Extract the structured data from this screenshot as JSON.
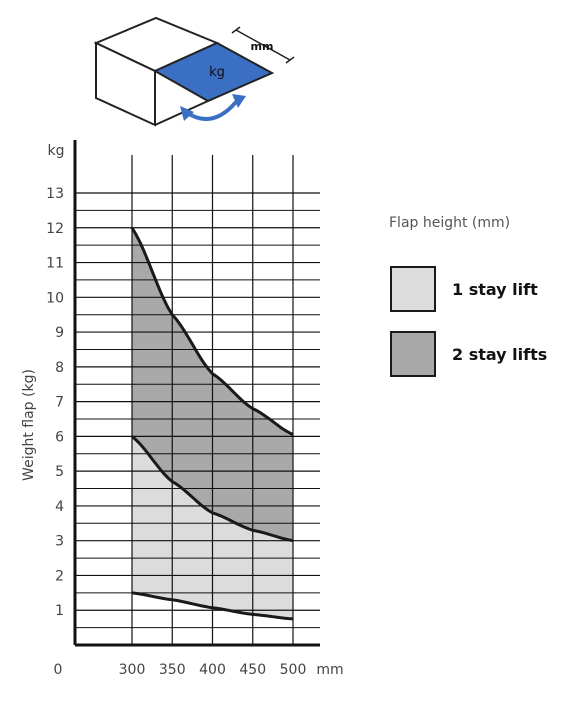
{
  "icon": {
    "name": "flap-box-icon",
    "label_kg": "kg",
    "label_mm": "mm",
    "colors": {
      "flap": "#3a6fc4",
      "arrow": "#3a6fc4",
      "outline": "#222222"
    }
  },
  "legend": {
    "title": "Flap height (mm)",
    "items": [
      {
        "label": "1 stay lift",
        "color": "#dcdcdc"
      },
      {
        "label": "2 stay lifts",
        "color": "#a9a9a9"
      }
    ]
  },
  "chart_data": {
    "type": "area",
    "title": "",
    "xlabel": "mm",
    "ylabel": "Weight flap (kg)",
    "y_unit_label": "kg",
    "x_origin_label": "0",
    "x_ticks": [
      300,
      350,
      400,
      450,
      500
    ],
    "y_ticks": [
      1,
      2,
      3,
      4,
      5,
      6,
      7,
      8,
      9,
      10,
      11,
      12,
      13
    ],
    "xlim": [
      300,
      500
    ],
    "ylim": [
      0,
      13
    ],
    "grid": true,
    "legend_position": "right",
    "curves": {
      "lower": {
        "x": [
          300,
          350,
          400,
          450,
          500
        ],
        "y": [
          1.5,
          1.3,
          1.07,
          0.88,
          0.75
        ]
      },
      "middle": {
        "x": [
          300,
          350,
          400,
          450,
          500
        ],
        "y": [
          6.0,
          4.7,
          3.8,
          3.3,
          3.0
        ]
      },
      "upper": {
        "x": [
          300,
          350,
          400,
          450,
          500
        ],
        "y": [
          12.0,
          9.5,
          7.8,
          6.8,
          6.05
        ]
      }
    },
    "series": [
      {
        "name": "1 stay lift",
        "range_from": "lower",
        "range_to": "middle",
        "color": "#dcdcdc"
      },
      {
        "name": "2 stay lifts",
        "range_from": "middle",
        "range_to": "upper",
        "color": "#a9a9a9"
      }
    ]
  }
}
